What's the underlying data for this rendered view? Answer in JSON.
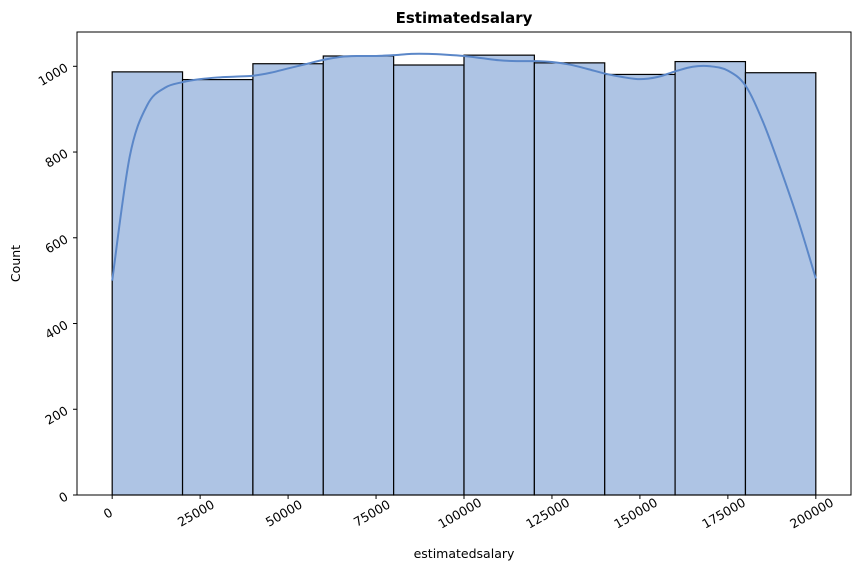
{
  "chart_data": {
    "type": "bar",
    "title": "Estimatedsalary",
    "xlabel": "estimatedsalary",
    "ylabel": "Count",
    "xlim": [
      -10000,
      210000
    ],
    "ylim": [
      0,
      1080
    ],
    "x_ticks": [
      0,
      25000,
      50000,
      75000,
      100000,
      125000,
      150000,
      175000,
      200000
    ],
    "y_ticks": [
      0,
      200,
      400,
      600,
      800,
      1000
    ],
    "tick_label_rotation": "30 degrees",
    "grid": false,
    "bins": [
      {
        "start": 0,
        "end": 20000,
        "count": 987
      },
      {
        "start": 20000,
        "end": 40000,
        "count": 969
      },
      {
        "start": 40000,
        "end": 60000,
        "count": 1006
      },
      {
        "start": 60000,
        "end": 80000,
        "count": 1024
      },
      {
        "start": 80000,
        "end": 100000,
        "count": 1003
      },
      {
        "start": 100000,
        "end": 120000,
        "count": 1026
      },
      {
        "start": 120000,
        "end": 140000,
        "count": 1008
      },
      {
        "start": 140000,
        "end": 160000,
        "count": 981
      },
      {
        "start": 160000,
        "end": 180000,
        "count": 1011
      },
      {
        "start": 180000,
        "end": 200000,
        "count": 985
      }
    ],
    "kde_curve": {
      "x": [
        0,
        5000,
        10000,
        15000,
        20000,
        25000,
        30000,
        35000,
        40000,
        45000,
        50000,
        55000,
        60000,
        65000,
        70000,
        75000,
        80000,
        85000,
        90000,
        95000,
        100000,
        105000,
        110000,
        115000,
        120000,
        125000,
        130000,
        135000,
        140000,
        145000,
        150000,
        155000,
        160000,
        165000,
        170000,
        175000,
        180000,
        185000,
        190000,
        195000,
        200000
      ],
      "y": [
        500,
        790,
        910,
        950,
        963,
        970,
        974,
        976,
        978,
        985,
        995,
        1005,
        1015,
        1022,
        1024,
        1024,
        1026,
        1029,
        1029,
        1027,
        1024,
        1019,
        1014,
        1012,
        1012,
        1010,
        1004,
        994,
        983,
        975,
        970,
        975,
        988,
        999,
        1000,
        990,
        955,
        870,
        760,
        640,
        505
      ]
    },
    "colors": {
      "bar_fill": "#aec4e4",
      "bar_edge": "#000000",
      "kde_line": "#5b87c8"
    }
  }
}
